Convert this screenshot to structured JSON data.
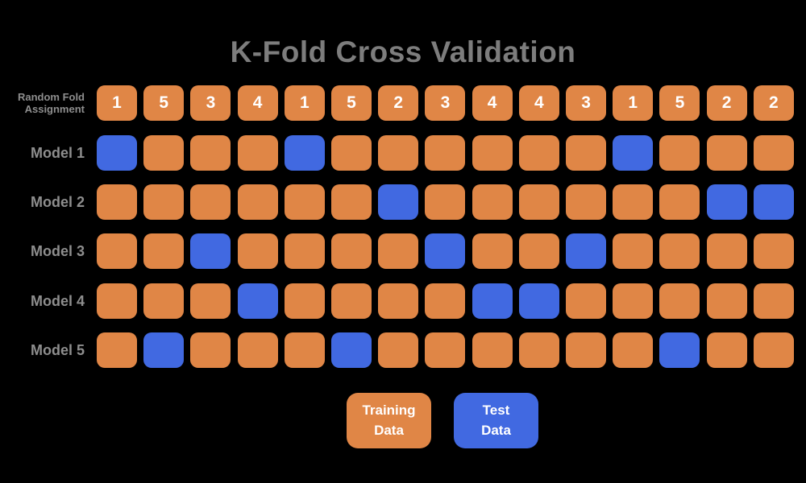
{
  "title": "K-Fold Cross Validation",
  "colors": {
    "background": "#000000",
    "training": "#E08646",
    "test": "#4169E1",
    "title_gray": "#7D7D7D",
    "label_gray": "#8E8E8E",
    "cell_text": "#FFFFFF"
  },
  "fold_row": {
    "label_line1": "Random Fold",
    "label_line2": "Assignment",
    "assignments": [
      1,
      5,
      3,
      4,
      1,
      5,
      2,
      3,
      4,
      4,
      3,
      1,
      5,
      2,
      2
    ]
  },
  "models": [
    {
      "label": "Model 1",
      "fold": 1,
      "test_indices": [
        0,
        4,
        11
      ]
    },
    {
      "label": "Model 2",
      "fold": 2,
      "test_indices": [
        6,
        13,
        14
      ]
    },
    {
      "label": "Model 3",
      "fold": 3,
      "test_indices": [
        2,
        7,
        10
      ]
    },
    {
      "label": "Model 4",
      "fold": 4,
      "test_indices": [
        3,
        8,
        9
      ]
    },
    {
      "label": "Model 5",
      "fold": 5,
      "test_indices": [
        1,
        5,
        12
      ]
    }
  ],
  "layout": {
    "row_tops": [
      106,
      168,
      229,
      290,
      352,
      413
    ]
  },
  "legend": [
    {
      "type": "training",
      "line1": "Training",
      "line2": "Data"
    },
    {
      "type": "test",
      "line1": "Test",
      "line2": "Data"
    }
  ]
}
